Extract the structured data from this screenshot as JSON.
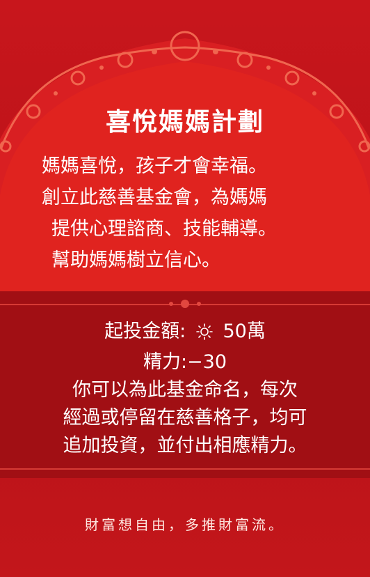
{
  "card": {
    "title": "喜悅媽媽計劃",
    "description_lines": [
      "媽媽喜悅，孩子才會幸福。",
      "創立此慈善基金會，為媽媽",
      "提供心理諮商、技能輔導。",
      "幫助媽媽樹立信心。"
    ],
    "investment_label": "起投金額:",
    "investment_value": "50萬",
    "investment_icon": "sun-icon",
    "energy_text": "精力:−30",
    "rule_lines": [
      "你可以為此基金命名，每次",
      "經過或停留在慈善格子，均可",
      "追加投資，並付出相應精力。"
    ],
    "slogan": "財富想自由，多推財富流。"
  },
  "colors": {
    "card_red": "#c8161c",
    "band_dark_red": "#a10f14",
    "arch_red": "#e02a25",
    "ornament_red": "#f05a4c",
    "text_white": "#ffffff"
  }
}
